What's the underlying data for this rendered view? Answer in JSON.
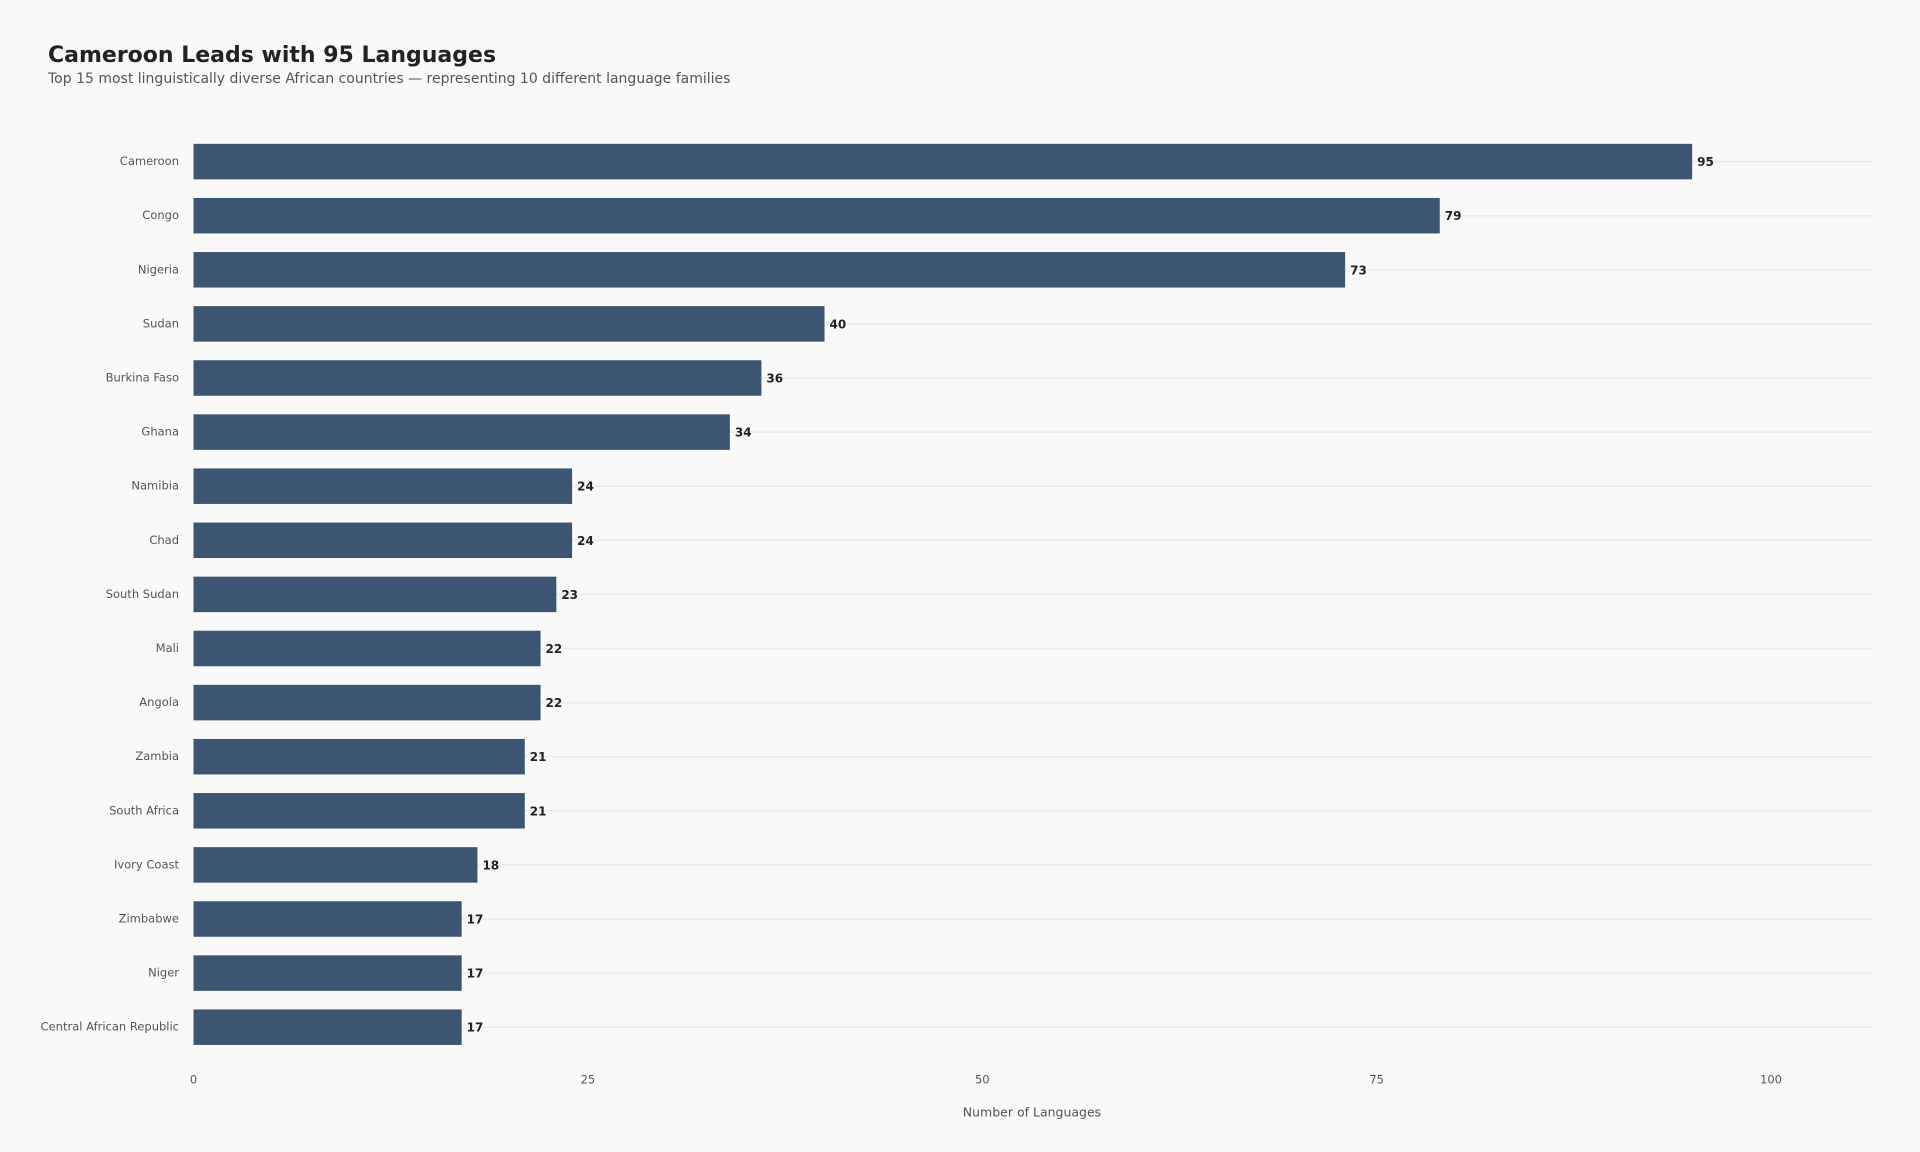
{
  "chart_data": {
    "type": "bar",
    "orientation": "horizontal",
    "title": "Cameroon Leads with 95 Languages",
    "subtitle": "Top 15 most linguistically diverse African countries — representing 10 different language families",
    "categories": [
      "Cameroon",
      "Congo",
      "Nigeria",
      "Sudan",
      "Burkina Faso",
      "Ghana",
      "Namibia",
      "Chad",
      "South Sudan",
      "Mali",
      "Angola",
      "Zambia",
      "South Africa",
      "Ivory Coast",
      "Zimbabwe",
      "Niger",
      "Central African Republic"
    ],
    "values": [
      95,
      79,
      73,
      40,
      36,
      34,
      24,
      24,
      23,
      22,
      22,
      21,
      21,
      18,
      17,
      17,
      17
    ],
    "color": "#3b5573",
    "xlim": [
      0,
      106.4
    ],
    "xticks": [
      0,
      25,
      50,
      75,
      100
    ],
    "xlabel": "Number of Languages",
    "grid": true
  }
}
